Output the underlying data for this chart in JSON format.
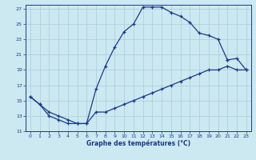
{
  "xlabel": "Graphe des températures (°C)",
  "background_color": "#cce8f0",
  "line_color": "#1a3a8a",
  "grid_color": "#aaccdd",
  "xlim": [
    -0.5,
    23.5
  ],
  "ylim": [
    11,
    27.5
  ],
  "xticks": [
    0,
    1,
    2,
    3,
    4,
    5,
    6,
    7,
    8,
    9,
    10,
    11,
    12,
    13,
    14,
    15,
    16,
    17,
    18,
    19,
    20,
    21,
    22,
    23
  ],
  "yticks": [
    11,
    13,
    15,
    17,
    19,
    21,
    23,
    25,
    27
  ],
  "curve1_x": [
    0,
    1,
    2,
    3,
    4,
    5,
    6,
    7,
    8,
    9,
    10,
    11,
    12,
    13,
    14,
    15,
    16,
    17,
    18,
    19,
    20,
    21
  ],
  "curve1_y": [
    15.5,
    14.5,
    13.0,
    12.5,
    12.0,
    12.0,
    12.0,
    16.5,
    19.5,
    22.0,
    24.0,
    25.0,
    27.2,
    27.2,
    27.2,
    26.5,
    26.0,
    25.2,
    23.8,
    23.5,
    23.0,
    20.3
  ],
  "curve2_x": [
    21,
    22,
    23
  ],
  "curve2_y": [
    20.3,
    20.5,
    19.0
  ],
  "curve3_x": [
    0,
    1,
    2,
    3,
    4,
    5,
    6,
    7,
    8,
    9,
    10,
    11,
    12,
    13,
    14,
    15,
    16,
    17,
    18,
    19,
    20,
    21,
    22,
    23
  ],
  "curve3_y": [
    15.5,
    14.5,
    13.5,
    13.0,
    12.5,
    12.0,
    12.0,
    13.5,
    13.5,
    14.0,
    14.5,
    15.0,
    15.5,
    16.0,
    16.5,
    17.0,
    17.5,
    18.0,
    18.5,
    19.0,
    19.0,
    19.5,
    19.0,
    19.0
  ]
}
